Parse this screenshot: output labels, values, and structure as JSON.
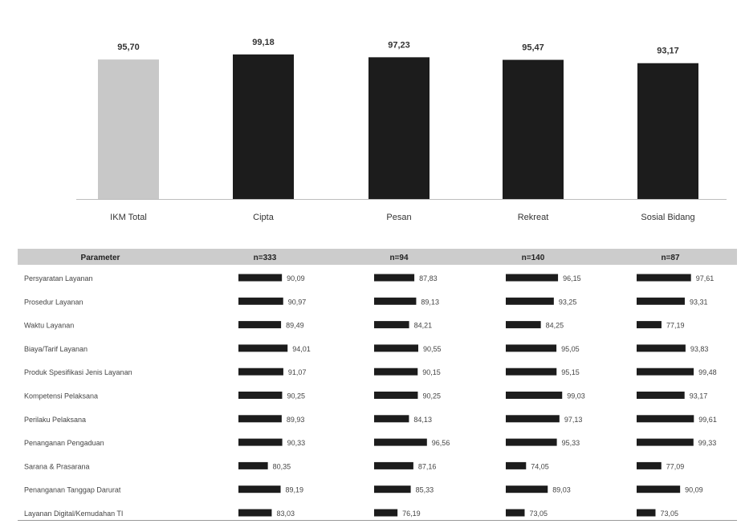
{
  "chart_data": [
    {
      "type": "bar",
      "categories": [
        "IKM Total",
        "Cipta",
        "Pesan",
        "Rekreat",
        "Sosial Bidang"
      ],
      "values": [
        95.7,
        99.18,
        97.23,
        95.47,
        93.17
      ],
      "value_labels": [
        "95,70",
        "99,18",
        "97,23",
        "95,47",
        "93,17"
      ],
      "colors": [
        "#c8c8c8",
        "#1c1c1c",
        "#1c1c1c",
        "#1c1c1c",
        "#1c1c1c"
      ],
      "ylim": [
        0,
        120
      ],
      "grid": false
    },
    {
      "type": "table",
      "columns": [
        "Parameter",
        "n=333",
        "n=94",
        "n=140",
        "n=87"
      ],
      "header_color": "#cccccc",
      "bar_color": "#1c1c1c",
      "rows": [
        {
          "parameter": "Persyaratan Layanan",
          "values": [
            90.09,
            87.83,
            96.15,
            97.61
          ],
          "labels": [
            "90,09",
            "87,83",
            "96,15",
            "97,61"
          ]
        },
        {
          "parameter": "Prosedur Layanan",
          "values": [
            90.97,
            89.13,
            93.25,
            93.31
          ],
          "labels": [
            "90,97",
            "89,13",
            "93,25",
            "93,31"
          ]
        },
        {
          "parameter": "Waktu Layanan",
          "values": [
            89.49,
            84.21,
            84.25,
            77.19
          ],
          "labels": [
            "89,49",
            "84,21",
            "84,25",
            "77,19"
          ]
        },
        {
          "parameter": "Biaya/Tarif Layanan",
          "values": [
            94.01,
            90.55,
            95.05,
            93.83
          ],
          "labels": [
            "94,01",
            "90,55",
            "95,05",
            "93,83"
          ]
        },
        {
          "parameter": "Produk Spesifikasi Jenis Layanan",
          "values": [
            91.07,
            90.15,
            95.15,
            99.48
          ],
          "labels": [
            "91,07",
            "90,15",
            "95,15",
            "99,48"
          ]
        },
        {
          "parameter": "Kompetensi Pelaksana",
          "values": [
            90.25,
            90.25,
            99.03,
            93.17
          ],
          "labels": [
            "90,25",
            "90,25",
            "99,03",
            "93,17"
          ]
        },
        {
          "parameter": "Perilaku Pelaksana",
          "values": [
            89.93,
            84.13,
            97.13,
            99.61
          ],
          "labels": [
            "89,93",
            "84,13",
            "97,13",
            "99,61"
          ]
        },
        {
          "parameter": "Penanganan Pengaduan",
          "values": [
            90.33,
            96.56,
            95.33,
            99.33
          ],
          "labels": [
            "90,33",
            "96,56",
            "95,33",
            "99,33"
          ]
        },
        {
          "parameter": "Sarana & Prasarana",
          "values": [
            80.35,
            87.16,
            74.05,
            77.09
          ],
          "labels": [
            "80,35",
            "87,16",
            "74,05",
            "77,09"
          ]
        },
        {
          "parameter": "Penanganan Tanggap Darurat",
          "values": [
            89.19,
            85.33,
            89.03,
            90.09
          ],
          "labels": [
            "89,19",
            "85,33",
            "89,03",
            "90,09"
          ]
        },
        {
          "parameter": "Layanan Digital/Kemudahan TI",
          "values": [
            83.03,
            76.19,
            73.05,
            73.05
          ],
          "labels": [
            "83,03",
            "76,19",
            "73,05",
            "73,05"
          ]
        }
      ]
    }
  ]
}
